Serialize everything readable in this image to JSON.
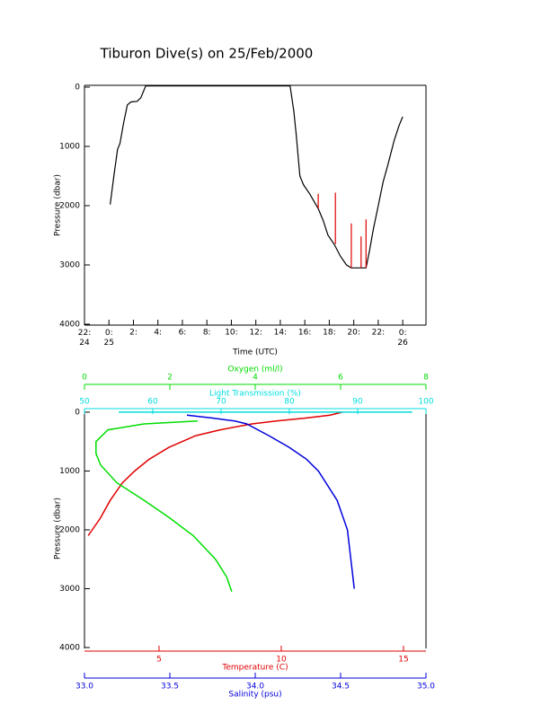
{
  "chart_data": [
    {
      "type": "line",
      "title": "Tiburon Dive(s) on 25/Feb/2000",
      "xlabel": "Time (UTC)",
      "ylabel": "Pressure (dbar)",
      "xlim": [
        -2,
        25.9
      ],
      "ylim": [
        4015,
        -30
      ],
      "xticks": [
        {
          "value": -2,
          "label": "22:\n24"
        },
        {
          "value": 0,
          "label": "0:\n25"
        },
        {
          "value": 2,
          "label": "2:"
        },
        {
          "value": 4,
          "label": "4:"
        },
        {
          "value": 6,
          "label": "6:"
        },
        {
          "value": 8,
          "label": "8:"
        },
        {
          "value": 10,
          "label": "10:"
        },
        {
          "value": 12,
          "label": "12:"
        },
        {
          "value": 14,
          "label": "14:"
        },
        {
          "value": 16,
          "label": "16:"
        },
        {
          "value": 18,
          "label": "18:"
        },
        {
          "value": 20,
          "label": "20:"
        },
        {
          "value": 22,
          "label": "22:"
        },
        {
          "value": 24,
          "label": "0:\n26"
        }
      ],
      "yticks": [
        0,
        1000,
        2000,
        3000,
        4000
      ],
      "series": [
        {
          "color": "#000000",
          "x": [
            0.1,
            0.4,
            0.7,
            0.9,
            1.2,
            1.5,
            1.8,
            2.3,
            2.6,
            3.0,
            14.8,
            15.1,
            15.3,
            15.6,
            15.9,
            16.4,
            17.1,
            17.5,
            17.9,
            18.4,
            18.9,
            19.4,
            19.8,
            20.5,
            21.0,
            21.3,
            21.6,
            22.0,
            22.4,
            22.8,
            23.3,
            23.7,
            24.0
          ],
          "y": [
            1980,
            1500,
            1050,
            950,
            600,
            300,
            250,
            240,
            180,
            -20,
            -20,
            400,
            800,
            1500,
            1650,
            1800,
            2050,
            2250,
            2500,
            2650,
            2850,
            3000,
            3050,
            3050,
            3050,
            2750,
            2400,
            2000,
            1600,
            1300,
            900,
            650,
            500
          ]
        },
        {
          "color": "#e00000",
          "x": [
            17.1,
            17.1,
            null,
            18.5,
            18.5,
            null,
            19.8,
            19.8,
            null,
            20.6,
            20.6,
            null,
            21.0,
            21.0
          ],
          "y": [
            2050,
            1800,
            null,
            2650,
            1780,
            null,
            3050,
            2300,
            null,
            3050,
            2520,
            null,
            3050,
            2230
          ]
        }
      ]
    },
    {
      "type": "profile",
      "ylabel": "Pressure (dbar)",
      "ylim": [
        4015,
        -60
      ],
      "yticks": [
        0,
        1000,
        2000,
        3000,
        4000
      ],
      "axes": [
        {
          "label": "Oxygen (ml/l)",
          "color": "#00dd00",
          "lim": [
            0,
            8
          ],
          "ticks": [
            0,
            2,
            4,
            6,
            8
          ],
          "position": "top"
        },
        {
          "label": "Light Transmission (%)",
          "color": "#00dddd",
          "lim": [
            50,
            100
          ],
          "ticks": [
            50,
            60,
            70,
            80,
            90,
            100
          ],
          "position": "top"
        },
        {
          "label": "Temperature (C)",
          "color": "#e00000",
          "lim": [
            1.95,
            15.92
          ],
          "ticks": [
            5,
            10,
            15
          ],
          "position": "bottom"
        },
        {
          "label": "Salinity (psu)",
          "color": "#0000dd",
          "lim": [
            33,
            35
          ],
          "ticks": [
            {
              "value": 33,
              "label": "33.0"
            },
            33.5,
            {
              "value": 34,
              "label": "34.0"
            },
            34.5,
            {
              "value": 35,
              "label": "35.0"
            }
          ],
          "position": "bottom"
        }
      ],
      "series": [
        {
          "axis": 2,
          "values": [
            12.5,
            12.0,
            11.0,
            9.8,
            8.8,
            7.5,
            6.5,
            5.4,
            4.6,
            4.0,
            3.5,
            3.0,
            2.6,
            2.1
          ],
          "pressure": [
            0,
            50,
            100,
            150,
            200,
            300,
            400,
            600,
            800,
            1000,
            1200,
            1500,
            1800,
            2100
          ]
        },
        {
          "axis": 3,
          "values": [
            33.6,
            33.75,
            33.88,
            33.95,
            34.08,
            34.2,
            34.3,
            34.37,
            34.48,
            34.54,
            34.56,
            34.58
          ],
          "pressure": [
            50,
            100,
            150,
            200,
            400,
            600,
            800,
            1000,
            1500,
            2000,
            2500,
            3000
          ]
        },
        {
          "axis": 0,
          "values": [
            2.65,
            1.4,
            0.55,
            0.27,
            0.27,
            0.38,
            0.76,
            1.4,
            2.0,
            2.55,
            3.07,
            3.33,
            3.45
          ],
          "pressure": [
            150,
            200,
            300,
            500,
            700,
            900,
            1200,
            1500,
            1800,
            2100,
            2500,
            2800,
            3050
          ]
        },
        {
          "axis": 1,
          "values": [
            55,
            70,
            85,
            98
          ],
          "pressure": [
            0,
            0,
            0,
            0
          ]
        }
      ]
    }
  ]
}
